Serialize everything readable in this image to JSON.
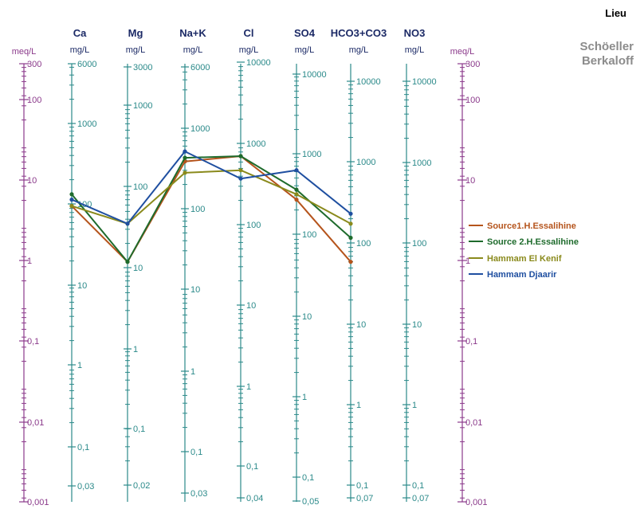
{
  "header": {
    "place_label": "Lieu",
    "method_lines": [
      "Schöeller",
      "Berkaloff"
    ]
  },
  "colors": {
    "meq_axis": "#8b3a8b",
    "ion_axis": "#2b8a8a",
    "header_text": "#1c2a66"
  },
  "chart_data": {
    "type": "line",
    "meq_unit_label": "meq/L",
    "meq_ticks": [
      "300",
      "100",
      "10",
      "1",
      "0,1",
      "0,01",
      "0,001"
    ],
    "meq_range": [
      0.001,
      300
    ],
    "ion_axes": [
      {
        "name": "Ca",
        "unit": "mg/L",
        "ticks": [
          "6000",
          "1000",
          "100",
          "10",
          "1",
          "0,1",
          "0,03"
        ]
      },
      {
        "name": "Mg",
        "unit": "mg/L",
        "ticks": [
          "3000",
          "1000",
          "100",
          "10",
          "1",
          "0,1",
          "0,02"
        ]
      },
      {
        "name": "Na+K",
        "unit": "mg/L",
        "ticks": [
          "6000",
          "1000",
          "100",
          "10",
          "1",
          "0,1",
          "0,03"
        ]
      },
      {
        "name": "Cl",
        "unit": "mg/L",
        "ticks": [
          "10000",
          "1000",
          "100",
          "10",
          "1",
          "0,1",
          "0,04"
        ]
      },
      {
        "name": "SO4",
        "unit": "mg/L",
        "ticks": [
          "10000",
          "1000",
          "100",
          "10",
          "1",
          "0,1",
          "0,05"
        ]
      },
      {
        "name": "HCO3+CO3",
        "unit": "mg/L",
        "ticks": [
          "10000",
          "1000",
          "100",
          "10",
          "1",
          "0,1",
          "0,07"
        ]
      },
      {
        "name": "NO3",
        "unit": "mg/L",
        "ticks": [
          "10000",
          "1000",
          "100",
          "10",
          "1",
          "0,1",
          "0,07"
        ]
      }
    ],
    "series": [
      {
        "name": "Source1.H.Essalihine",
        "color": "#b5541c",
        "values_meq": [
          5.0,
          1.0,
          18.0,
          21.0,
          6.0,
          1.0
        ]
      },
      {
        "name": "Source 2.H.Essalihine",
        "color": "#1e6b2c",
        "values_meq": [
          7.0,
          1.0,
          20.0,
          21.0,
          8.0,
          2.0
        ]
      },
      {
        "name": "Hammam El Kenif",
        "color": "#8a8a1c",
        "values_meq": [
          5.0,
          3.0,
          13.0,
          14.0,
          7.0,
          3.0
        ]
      },
      {
        "name": "Hammam Djaarir",
        "color": "#1f4fa0",
        "values_meq": [
          6.0,
          3.0,
          24.0,
          11.0,
          14.0,
          4.0
        ]
      }
    ]
  }
}
